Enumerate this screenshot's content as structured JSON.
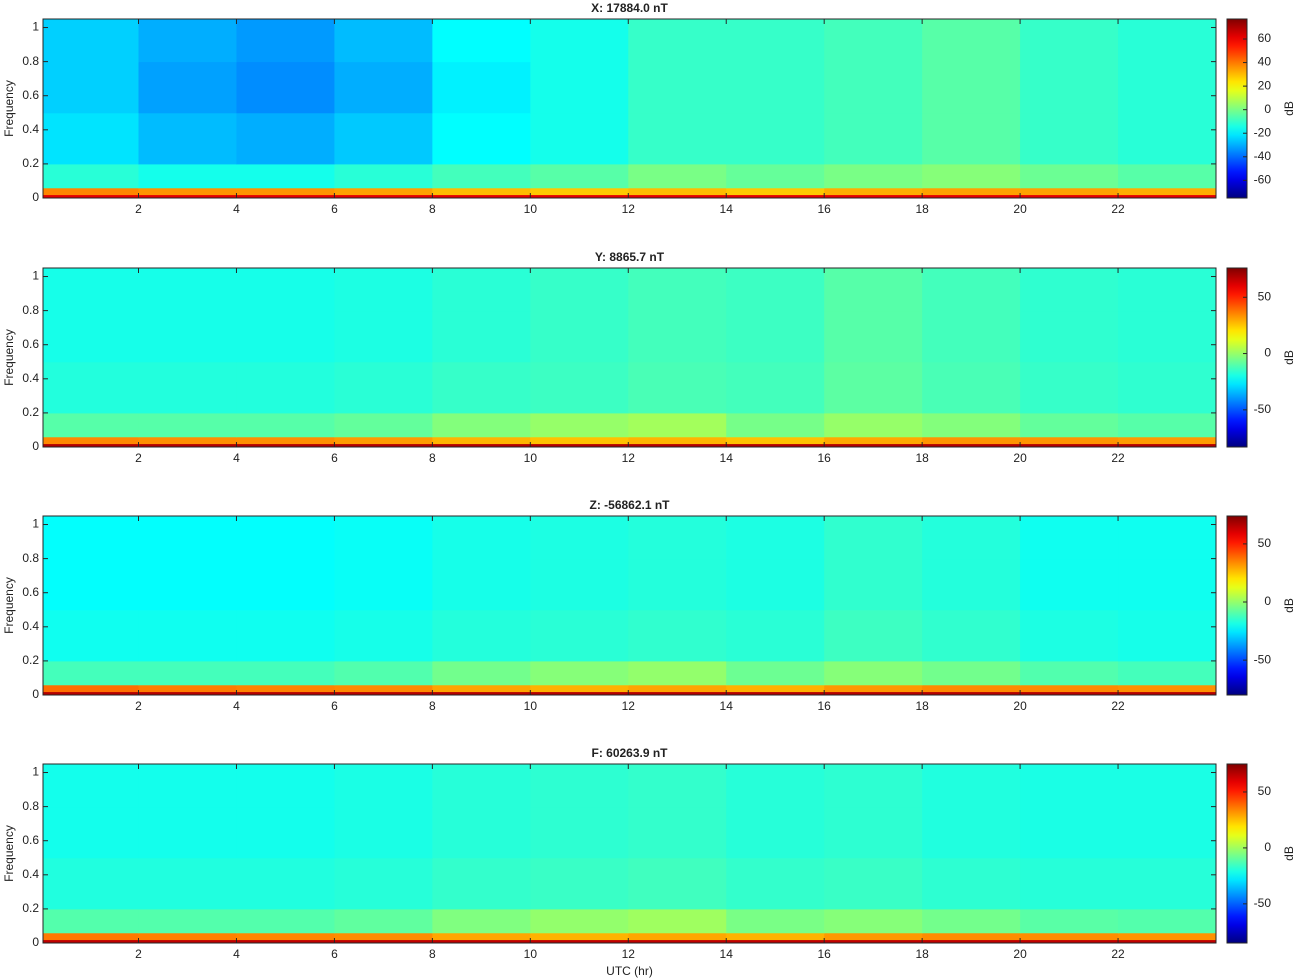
{
  "chart_data": [
    {
      "type": "heatmap",
      "title": "X: 17884.0 nT",
      "ylabel": "Frequency",
      "colormap": "jet",
      "x_bins": [
        0,
        2,
        4,
        6,
        8,
        10,
        12,
        14,
        16,
        18,
        20,
        22,
        24
      ],
      "y_bins": [
        0,
        0.02,
        0.06,
        0.2,
        0.5,
        0.8,
        1.05
      ],
      "values": [
        [
          62,
          62,
          62,
          62,
          62,
          62,
          62,
          62,
          62,
          62,
          62,
          62
        ],
        [
          38,
          36,
          36,
          34,
          30,
          28,
          30,
          28,
          32,
          34,
          34,
          32
        ],
        [
          -12,
          -15,
          -15,
          -12,
          -8,
          -5,
          0,
          -3,
          0,
          2,
          -2,
          -5
        ],
        [
          -22,
          -28,
          -30,
          -26,
          -18,
          -15,
          -10,
          -10,
          -8,
          -5,
          -10,
          -12
        ],
        [
          -25,
          -32,
          -35,
          -30,
          -20,
          -15,
          -10,
          -10,
          -8,
          -5,
          -10,
          -12
        ],
        [
          -25,
          -30,
          -33,
          -28,
          -18,
          -15,
          -10,
          -10,
          -8,
          -5,
          -10,
          -12
        ]
      ],
      "xlim": [
        0.05,
        24
      ],
      "ylim": [
        0,
        1.05
      ],
      "xticks": [
        2,
        4,
        6,
        8,
        10,
        12,
        14,
        16,
        18,
        20,
        22
      ],
      "yticks": [
        0,
        0.2,
        0.4,
        0.6,
        0.8,
        1
      ],
      "colorbar": {
        "label": "dB",
        "clim": [
          -75,
          77
        ],
        "ticks": [
          -60,
          -40,
          -20,
          0,
          20,
          40,
          60
        ]
      }
    },
    {
      "type": "heatmap",
      "title": "Y: 8865.7 nT",
      "ylabel": "Frequency",
      "colormap": "jet",
      "x_bins": [
        0,
        2,
        4,
        6,
        8,
        10,
        12,
        14,
        16,
        18,
        20,
        22,
        24
      ],
      "y_bins": [
        0,
        0.02,
        0.06,
        0.2,
        0.5,
        0.8,
        1.05
      ],
      "values": [
        [
          68,
          68,
          68,
          68,
          68,
          68,
          68,
          68,
          68,
          68,
          68,
          68
        ],
        [
          35,
          34,
          34,
          32,
          28,
          26,
          28,
          26,
          30,
          33,
          33,
          32
        ],
        [
          -10,
          -10,
          -10,
          -8,
          -3,
          0,
          2,
          -5,
          0,
          -3,
          -8,
          -10
        ],
        [
          -18,
          -18,
          -18,
          -17,
          -15,
          -14,
          -12,
          -13,
          -9,
          -12,
          -15,
          -16
        ],
        [
          -20,
          -20,
          -20,
          -19,
          -17,
          -15,
          -13,
          -14,
          -10,
          -13,
          -16,
          -17
        ],
        [
          -20,
          -20,
          -20,
          -19,
          -17,
          -15,
          -13,
          -14,
          -10,
          -13,
          -16,
          -17
        ]
      ],
      "xlim": [
        0.05,
        24
      ],
      "ylim": [
        0,
        1.05
      ],
      "xticks": [
        2,
        4,
        6,
        8,
        10,
        12,
        14,
        16,
        18,
        20,
        22
      ],
      "yticks": [
        0,
        0.2,
        0.4,
        0.6,
        0.8,
        1
      ],
      "colorbar": {
        "label": "dB",
        "clim": [
          -83,
          76
        ],
        "ticks": [
          -50,
          0,
          50
        ]
      }
    },
    {
      "type": "heatmap",
      "title": "Z: -56862.1 nT",
      "ylabel": "Frequency",
      "colormap": "jet",
      "x_bins": [
        0,
        2,
        4,
        6,
        8,
        10,
        12,
        14,
        16,
        18,
        20,
        22,
        24
      ],
      "y_bins": [
        0,
        0.02,
        0.06,
        0.2,
        0.5,
        0.8,
        1.05
      ],
      "values": [
        [
          66,
          66,
          66,
          66,
          66,
          66,
          66,
          66,
          66,
          66,
          66,
          66
        ],
        [
          38,
          36,
          35,
          34,
          30,
          28,
          30,
          28,
          32,
          34,
          34,
          33
        ],
        [
          -12,
          -12,
          -12,
          -10,
          -5,
          -2,
          0,
          -6,
          -2,
          -5,
          -10,
          -12
        ],
        [
          -20,
          -20,
          -20,
          -19,
          -17,
          -16,
          -15,
          -16,
          -13,
          -15,
          -18,
          -19
        ],
        [
          -22,
          -22,
          -22,
          -21,
          -19,
          -18,
          -17,
          -18,
          -15,
          -17,
          -20,
          -20
        ],
        [
          -22,
          -22,
          -22,
          -21,
          -19,
          -18,
          -17,
          -18,
          -15,
          -17,
          -20,
          -20
        ]
      ],
      "xlim": [
        0.05,
        24
      ],
      "ylim": [
        0,
        1.05
      ],
      "xticks": [
        2,
        4,
        6,
        8,
        10,
        12,
        14,
        16,
        18,
        20,
        22
      ],
      "yticks": [
        0,
        0.2,
        0.4,
        0.6,
        0.8,
        1
      ],
      "colorbar": {
        "label": "dB",
        "clim": [
          -80,
          74
        ],
        "ticks": [
          -50,
          0,
          50
        ]
      }
    },
    {
      "type": "heatmap",
      "title": "F: 60263.9 nT",
      "ylabel": "Frequency",
      "xlabel": "UTC (hr)",
      "colormap": "jet",
      "x_bins": [
        0,
        2,
        4,
        6,
        8,
        10,
        12,
        14,
        16,
        18,
        20,
        22,
        24
      ],
      "y_bins": [
        0,
        0.02,
        0.06,
        0.2,
        0.5,
        0.8,
        1.05
      ],
      "values": [
        [
          65,
          65,
          65,
          65,
          65,
          65,
          65,
          65,
          65,
          65,
          65,
          65
        ],
        [
          36,
          35,
          34,
          33,
          29,
          27,
          29,
          27,
          31,
          33,
          33,
          32
        ],
        [
          -12,
          -12,
          -12,
          -10,
          -5,
          -2,
          0,
          -6,
          -4,
          -7,
          -11,
          -12
        ],
        [
          -20,
          -20,
          -20,
          -19,
          -17,
          -16,
          -15,
          -17,
          -16,
          -18,
          -19,
          -19
        ],
        [
          -22,
          -22,
          -22,
          -21,
          -19,
          -18,
          -17,
          -19,
          -18,
          -20,
          -21,
          -21
        ],
        [
          -22,
          -22,
          -22,
          -21,
          -19,
          -18,
          -17,
          -19,
          -18,
          -20,
          -21,
          -21
        ]
      ],
      "xlim": [
        0.05,
        24
      ],
      "ylim": [
        0,
        1.05
      ],
      "xticks": [
        2,
        4,
        6,
        8,
        10,
        12,
        14,
        16,
        18,
        20,
        22
      ],
      "yticks": [
        0,
        0.2,
        0.4,
        0.6,
        0.8,
        1
      ],
      "colorbar": {
        "label": "dB",
        "clim": [
          -85,
          75
        ],
        "ticks": [
          -50,
          0,
          50
        ]
      }
    }
  ]
}
